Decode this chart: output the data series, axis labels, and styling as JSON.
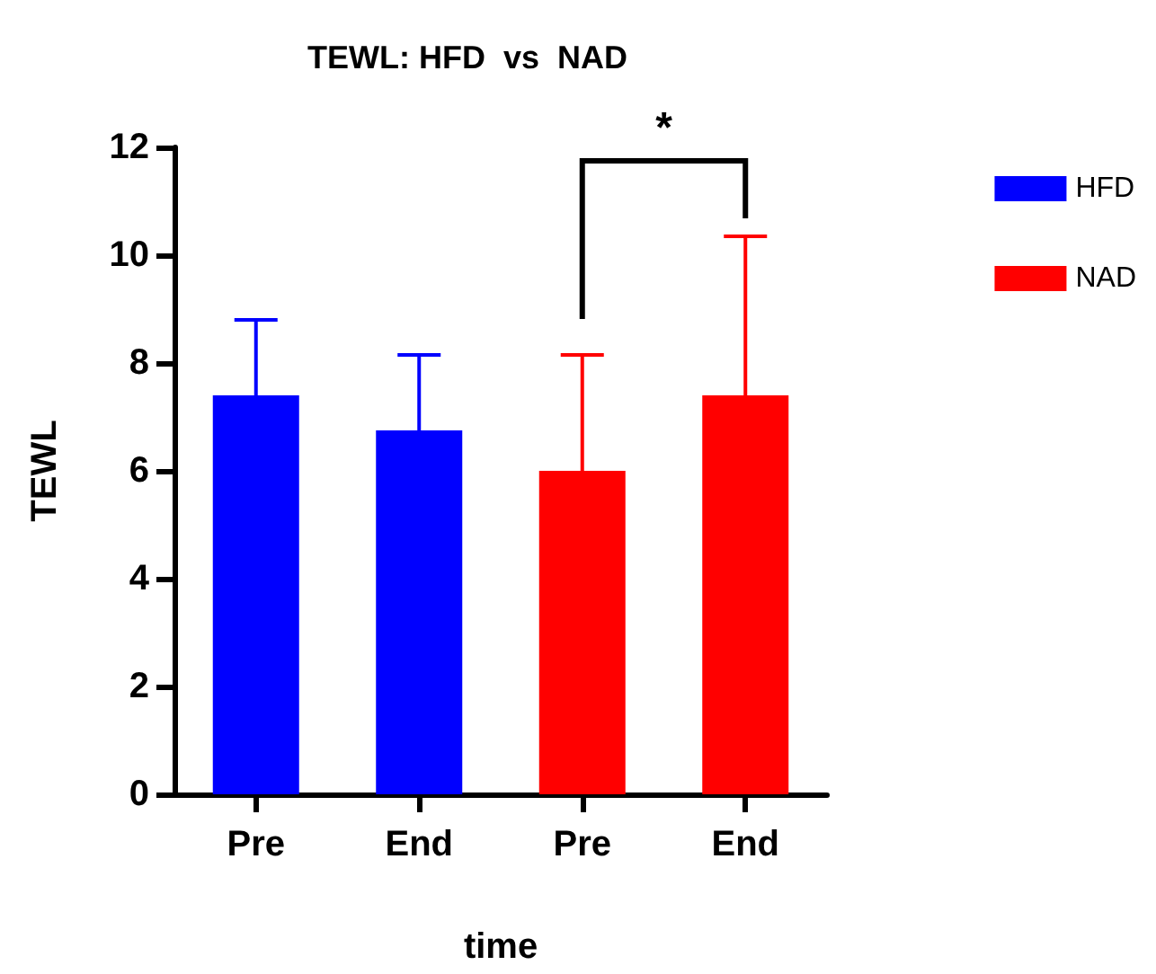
{
  "chart_data": {
    "type": "bar",
    "title": "TEWL: HFD  vs  NAD",
    "xlabel": "time",
    "ylabel": "TEWL",
    "categories": [
      "Pre",
      "End",
      "Pre",
      "End"
    ],
    "series": [
      {
        "name": "HFD",
        "color": "#0000ff",
        "values": [
          7.4,
          6.75,
          null,
          null
        ],
        "errors": [
          [
            7.4,
            8.8
          ],
          [
            6.75,
            8.15
          ],
          null,
          null
        ]
      },
      {
        "name": "NAD",
        "color": "#ff0000",
        "values": [
          null,
          null,
          6.0,
          7.4
        ],
        "errors": [
          null,
          null,
          [
            6.0,
            8.15
          ],
          [
            7.4,
            10.35
          ]
        ]
      }
    ],
    "annotations": [
      "*"
    ],
    "ylim": [
      0,
      12
    ],
    "yticks": [
      0,
      2,
      4,
      6,
      8,
      10,
      12
    ],
    "grid": false,
    "legend": "top right"
  }
}
